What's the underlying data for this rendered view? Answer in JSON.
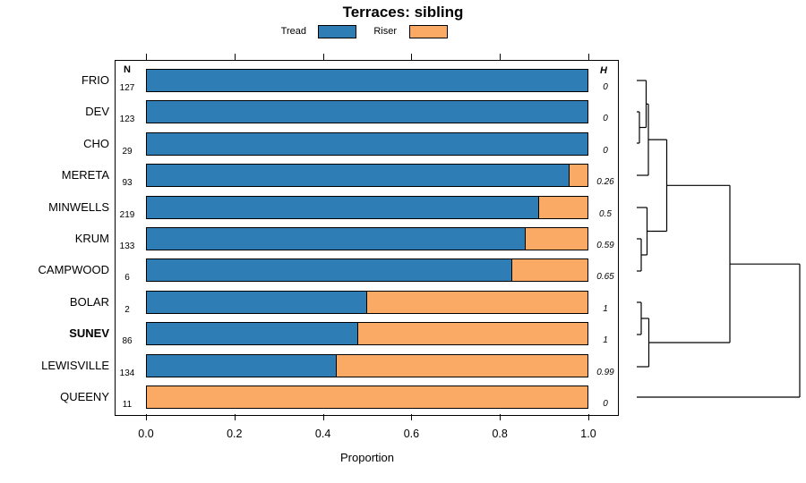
{
  "title": "Terraces: sibling",
  "legend": {
    "items": [
      {
        "label": "Tread",
        "color": "#2E7DB5"
      },
      {
        "label": "Riser",
        "color": "#FAAA64"
      }
    ]
  },
  "columns": {
    "n_header": "N",
    "h_header": "H"
  },
  "axis": {
    "label": "Proportion",
    "ticks": [
      0,
      0.2,
      0.4,
      0.6,
      0.8,
      1.0
    ],
    "tick_labels": [
      "0.0",
      "0.2",
      "0.4",
      "0.6",
      "0.8",
      "1.0"
    ]
  },
  "chart_data": {
    "type": "bar",
    "stacked": true,
    "orientation": "horizontal",
    "title": "Terraces: sibling",
    "xlabel": "Proportion",
    "xlim": [
      0,
      1
    ],
    "x_ticks": [
      0,
      0.2,
      0.4,
      0.6,
      0.8,
      1.0
    ],
    "legend_position": "top",
    "series_names": [
      "Tread",
      "Riser"
    ],
    "colors": {
      "Tread": "#2E7DB5",
      "Riser": "#FAAA64"
    },
    "rows": [
      {
        "label": "FRIO",
        "n": 127,
        "tread": 1.0,
        "riser": 0.0,
        "h": "0",
        "emphasis": false
      },
      {
        "label": "DEV",
        "n": 123,
        "tread": 1.0,
        "riser": 0.0,
        "h": "0",
        "emphasis": false
      },
      {
        "label": "CHO",
        "n": 29,
        "tread": 1.0,
        "riser": 0.0,
        "h": "0",
        "emphasis": false
      },
      {
        "label": "MERETA",
        "n": 93,
        "tread": 0.96,
        "riser": 0.04,
        "h": "0.26",
        "emphasis": false
      },
      {
        "label": "MINWELLS",
        "n": 219,
        "tread": 0.89,
        "riser": 0.11,
        "h": "0.5",
        "emphasis": false
      },
      {
        "label": "KRUM",
        "n": 133,
        "tread": 0.86,
        "riser": 0.14,
        "h": "0.59",
        "emphasis": false
      },
      {
        "label": "CAMPWOOD",
        "n": 6,
        "tread": 0.83,
        "riser": 0.17,
        "h": "0.65",
        "emphasis": false
      },
      {
        "label": "BOLAR",
        "n": 2,
        "tread": 0.5,
        "riser": 0.5,
        "h": "1",
        "emphasis": false
      },
      {
        "label": "SUNEV",
        "n": 86,
        "tread": 0.48,
        "riser": 0.52,
        "h": "1",
        "emphasis": true
      },
      {
        "label": "LEWISVILLE",
        "n": 134,
        "tread": 0.43,
        "riser": 0.57,
        "h": "0.99",
        "emphasis": false
      },
      {
        "label": "QUEENY",
        "n": 11,
        "tread": 0.0,
        "riser": 1.0,
        "h": "0",
        "emphasis": false
      }
    ],
    "dendrogram": {
      "leaf_order": [
        "FRIO",
        "DEV",
        "CHO",
        "MERETA",
        "MINWELLS",
        "KRUM",
        "CAMPWOOD",
        "BOLAR",
        "SUNEV",
        "LEWISVILLE",
        "QUEENY"
      ],
      "segments": [
        [
          711,
          90,
          721.5,
          90
        ],
        [
          711,
          125,
          714,
          125
        ],
        [
          711,
          160,
          714,
          160
        ],
        [
          714,
          125,
          714,
          160
        ],
        [
          714,
          142.5,
          721.5,
          142.5
        ],
        [
          721.5,
          90,
          721.5,
          142.5
        ],
        [
          721.5,
          116.3,
          724,
          116.3
        ],
        [
          711,
          196,
          724,
          196
        ],
        [
          724,
          116.3,
          724,
          196
        ],
        [
          724,
          156.1,
          744.5,
          156.1
        ],
        [
          711,
          232,
          722.5,
          232
        ],
        [
          711,
          267,
          716,
          267
        ],
        [
          711,
          303,
          716,
          303
        ],
        [
          716,
          267,
          716,
          303
        ],
        [
          716,
          285,
          722.5,
          285
        ],
        [
          722.5,
          232,
          722.5,
          285
        ],
        [
          722.5,
          258.5,
          744.5,
          258.5
        ],
        [
          744.5,
          156.1,
          744.5,
          258.5
        ],
        [
          744.5,
          207.3,
          815,
          207.3
        ],
        [
          711,
          338,
          716,
          338
        ],
        [
          711,
          374,
          716,
          374
        ],
        [
          716,
          338,
          716,
          374
        ],
        [
          716,
          356,
          724.5,
          356
        ],
        [
          711,
          410,
          724.5,
          410
        ],
        [
          724.5,
          356,
          724.5,
          410
        ],
        [
          724.5,
          383,
          815,
          383
        ],
        [
          815,
          207.3,
          815,
          383
        ],
        [
          815,
          295.2,
          893,
          295.2
        ],
        [
          711,
          444,
          893,
          444
        ],
        [
          893,
          295.2,
          893,
          444
        ]
      ]
    }
  }
}
